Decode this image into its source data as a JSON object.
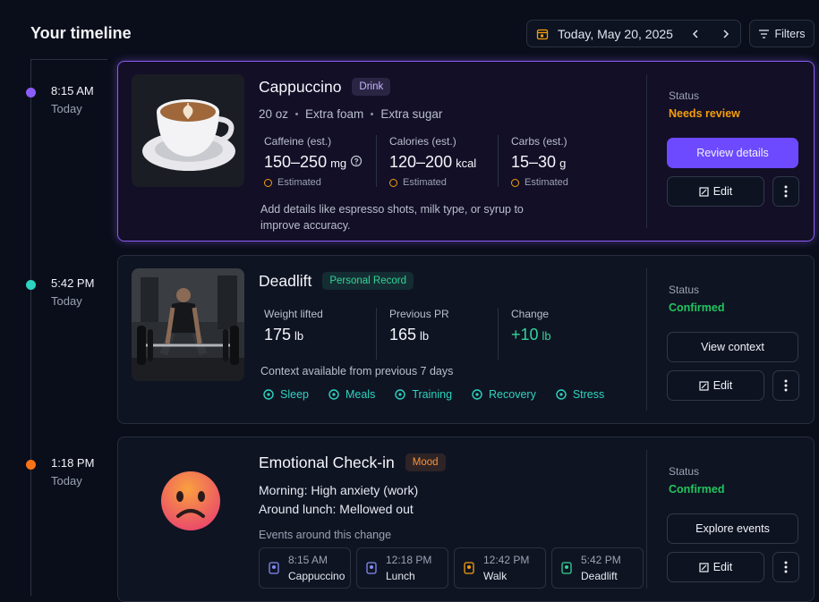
{
  "header": {
    "title": "Your timeline",
    "date": "Today, May 20, 2025",
    "filters": "Filters"
  },
  "entries": [
    {
      "time": "8:15 AM",
      "day": "Today",
      "dot_color": "#8b5cf6",
      "title": "Cappuccino",
      "tag": "Drink",
      "tag_color": "#c4b5fd",
      "details": [
        "20 oz",
        "Extra foam",
        "Extra sugar"
      ],
      "metrics": [
        {
          "label": "Caffeine (est.)",
          "value": "150–250",
          "unit": "mg",
          "note": "Estimated"
        },
        {
          "label": "Calories (est.)",
          "value": "120–200",
          "unit": "kcal",
          "note": "Estimated"
        },
        {
          "label": "Carbs (est.)",
          "value": "15–30",
          "unit": "g",
          "note": "Estimated"
        }
      ],
      "hint": "Add details like espresso shots, milk type, or syrup to improve accuracy.",
      "status_label": "Status",
      "status": "Needs review",
      "status_color": "#f59e0b",
      "action": "Review details",
      "edit": "Edit"
    },
    {
      "time": "5:42 PM",
      "day": "Today",
      "dot_color": "#2dd4bf",
      "title": "Deadlift",
      "tag": "Personal Record",
      "tag_color": "#34d399",
      "metrics": [
        {
          "label": "Weight lifted",
          "value": "175",
          "unit": "lb"
        },
        {
          "label": "Previous PR",
          "value": "165",
          "unit": "lb"
        },
        {
          "label": "Change",
          "value": "+10",
          "unit": "lb",
          "color": "#34d399"
        }
      ],
      "context": "Context available from previous 7 days",
      "chips": [
        "Sleep",
        "Meals",
        "Training",
        "Recovery",
        "Stress"
      ],
      "status_label": "Status",
      "status": "Confirmed",
      "status_color": "#22c55e",
      "action": "View context",
      "edit": "Edit"
    },
    {
      "time": "1:18 PM",
      "day": "Today",
      "dot_color": "#f97316",
      "title": "Emotional Check-in",
      "tag": "Mood",
      "tag_color": "#fb923c",
      "lines": [
        "Morning: High anxiety (work)",
        "Around lunch: Mellowed out"
      ],
      "events_label": "Events around this change",
      "events": [
        {
          "time": "8:15 AM",
          "name": "Cappuccino"
        },
        {
          "time": "12:18 PM",
          "name": "Lunch"
        },
        {
          "time": "12:42 PM",
          "name": "Walk"
        },
        {
          "time": "5:42 PM",
          "name": "Deadlift"
        }
      ],
      "status_label": "Status",
      "status": "Confirmed",
      "status_color": "#22c55e",
      "action": "Explore events",
      "edit": "Edit"
    }
  ]
}
